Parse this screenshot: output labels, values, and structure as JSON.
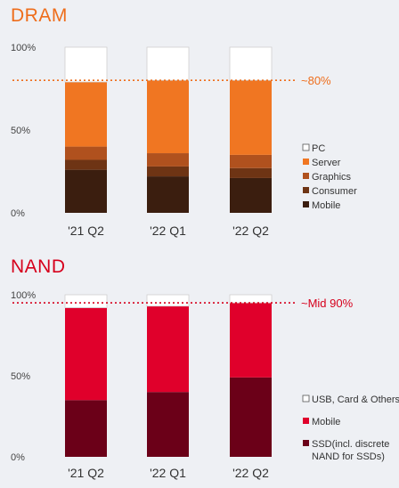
{
  "chart_data": [
    {
      "type": "bar",
      "stacked": true,
      "title": "DRAM",
      "categories": [
        "'21 Q2",
        "'22 Q1",
        "'22 Q2"
      ],
      "y_tick_labels": [
        "100%",
        "50%",
        "0%"
      ],
      "ylim": [
        0,
        100
      ],
      "grid": false,
      "legend_position": "right",
      "annotation": {
        "label": "~80%",
        "value": 80,
        "color": "#ee6d1b"
      },
      "series": [
        {
          "name": "Mobile",
          "color": "#3b1e0f",
          "values": [
            26,
            22,
            21
          ]
        },
        {
          "name": "Consumer",
          "color": "#6e3414",
          "values": [
            6,
            6,
            6
          ]
        },
        {
          "name": "Graphics",
          "color": "#b0511e",
          "values": [
            8,
            8,
            8
          ]
        },
        {
          "name": "Server",
          "color": "#f07622",
          "values": [
            39,
            44,
            45
          ]
        },
        {
          "name": "PC",
          "color": "#ffffff",
          "values": [
            21,
            20,
            20
          ]
        }
      ]
    },
    {
      "type": "bar",
      "stacked": true,
      "title": "NAND",
      "categories": [
        "'21 Q2",
        "'22 Q1",
        "'22 Q2"
      ],
      "y_tick_labels": [
        "100%",
        "50%",
        "0%"
      ],
      "ylim": [
        0,
        100
      ],
      "grid": false,
      "legend_position": "right",
      "annotation": {
        "label": "~Mid 90%",
        "value": 95,
        "color": "#d6001c"
      },
      "series": [
        {
          "name": "SSD(incl. discrete NAND for SSDs)",
          "color": "#6b0018",
          "values": [
            35,
            40,
            49
          ]
        },
        {
          "name": "Mobile",
          "color": "#e0002b",
          "values": [
            57,
            53,
            46
          ]
        },
        {
          "name": "USB, Card & Others",
          "color": "#ffffff",
          "values": [
            8,
            7,
            5
          ]
        }
      ]
    }
  ]
}
